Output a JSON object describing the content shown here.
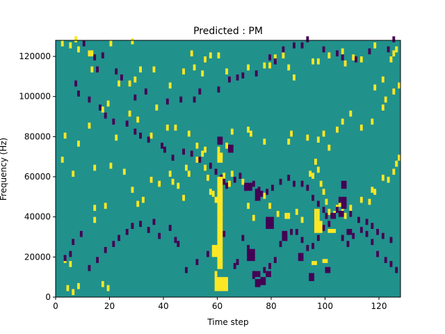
{
  "chart_data": {
    "type": "heatmap",
    "title": "Predicted : PM",
    "xlabel": "Time step",
    "ylabel": "Frequency (Hz)",
    "xlim": [
      0,
      128
    ],
    "ylim": [
      0,
      128000
    ],
    "grid": false,
    "xticks": [
      0,
      20,
      40,
      60,
      80,
      100,
      120
    ],
    "yticks": [
      0,
      20000,
      40000,
      60000,
      80000,
      100000,
      120000
    ],
    "n_time_steps": 128,
    "n_freq_bins": 128,
    "freq_bin_width": 1000,
    "values_range": [
      -1,
      1
    ],
    "colors": {
      "background": "#21918c",
      "positive": "#fde725",
      "negative": "#440154"
    },
    "cells": {
      "positive": [
        [
          2,
          125
        ],
        [
          5,
          124
        ],
        [
          7,
          127
        ],
        [
          8,
          122
        ],
        [
          13,
          120
        ],
        [
          20,
          125
        ],
        [
          28,
          126
        ],
        [
          4,
          3
        ],
        [
          3,
          17
        ],
        [
          5,
          15
        ],
        [
          6,
          1
        ],
        [
          14,
          37
        ],
        [
          17,
          5
        ],
        [
          19,
          3
        ],
        [
          23,
          105
        ],
        [
          27,
          105
        ],
        [
          29,
          107
        ],
        [
          31,
          112
        ],
        [
          36,
          112
        ],
        [
          42,
          104
        ],
        [
          47,
          111
        ],
        [
          50,
          120
        ],
        [
          51,
          113
        ],
        [
          54,
          110
        ],
        [
          55,
          117
        ],
        [
          57,
          119
        ],
        [
          60,
          119
        ],
        [
          63,
          111
        ],
        [
          71,
          113
        ],
        [
          77,
          114
        ],
        [
          79,
          114
        ],
        [
          81,
          118
        ],
        [
          84,
          119
        ],
        [
          86,
          113
        ],
        [
          88,
          108
        ],
        [
          95,
          116
        ],
        [
          97,
          116
        ],
        [
          101,
          119
        ],
        [
          106,
          121
        ],
        [
          107,
          115
        ],
        [
          110,
          118
        ],
        [
          113,
          117
        ],
        [
          118,
          124
        ],
        [
          118,
          103
        ],
        [
          121,
          107
        ],
        [
          124,
          117
        ],
        [
          125,
          120
        ],
        [
          126,
          122
        ],
        [
          8,
          4
        ],
        [
          12,
          120
        ],
        [
          13,
          112
        ],
        [
          12,
          84
        ],
        [
          19,
          95
        ],
        [
          17,
          92
        ],
        [
          22,
          78
        ],
        [
          27,
          90
        ],
        [
          30,
          87
        ],
        [
          35,
          79
        ],
        [
          37,
          93
        ],
        [
          41,
          83
        ],
        [
          44,
          83
        ],
        [
          49,
          80
        ],
        [
          52,
          74
        ],
        [
          54,
          70
        ],
        [
          55,
          72
        ],
        [
          60,
          72
        ],
        [
          61,
          69
        ],
        [
          63,
          74
        ],
        [
          65,
          81
        ],
        [
          72,
          80
        ],
        [
          71,
          82
        ],
        [
          77,
          76
        ],
        [
          86,
          76
        ],
        [
          87,
          80
        ],
        [
          93,
          78
        ],
        [
          97,
          77
        ],
        [
          99,
          80
        ],
        [
          101,
          73
        ],
        [
          104,
          82
        ],
        [
          106,
          86
        ],
        [
          109,
          90
        ],
        [
          113,
          83
        ],
        [
          117,
          86
        ],
        [
          121,
          93
        ],
        [
          122,
          97
        ],
        [
          125,
          101
        ],
        [
          127,
          104
        ],
        [
          2,
          67
        ],
        [
          3,
          79
        ],
        [
          6,
          60
        ],
        [
          8,
          75
        ],
        [
          14,
          43
        ],
        [
          18,
          44
        ],
        [
          14,
          63
        ],
        [
          20,
          64
        ],
        [
          25,
          61
        ],
        [
          28,
          52
        ],
        [
          30,
          45
        ],
        [
          32,
          47
        ],
        [
          35,
          57
        ],
        [
          38,
          55
        ],
        [
          42,
          60
        ],
        [
          43,
          56
        ],
        [
          45,
          54
        ],
        [
          47,
          48
        ],
        [
          48,
          63
        ],
        [
          49,
          60
        ],
        [
          52,
          67
        ],
        [
          55,
          63
        ],
        [
          56,
          58
        ],
        [
          57,
          51
        ],
        [
          58,
          50
        ],
        [
          59,
          47
        ],
        [
          62,
          59
        ],
        [
          64,
          55
        ],
        [
          65,
          60
        ],
        [
          69,
          56
        ],
        [
          71,
          44
        ],
        [
          73,
          38
        ],
        [
          75,
          48
        ],
        [
          77,
          49
        ],
        [
          79,
          44
        ],
        [
          82,
          40
        ],
        [
          85,
          39
        ],
        [
          86,
          39
        ],
        [
          89,
          41
        ],
        [
          91,
          37
        ],
        [
          94,
          60
        ],
        [
          95,
          59
        ],
        [
          96,
          66
        ],
        [
          97,
          62
        ],
        [
          98,
          55
        ],
        [
          99,
          51
        ],
        [
          100,
          46
        ],
        [
          101,
          41
        ],
        [
          103,
          40
        ],
        [
          104,
          43
        ],
        [
          105,
          45
        ],
        [
          106,
          41
        ],
        [
          107,
          39
        ],
        [
          109,
          43
        ],
        [
          113,
          47
        ],
        [
          116,
          46
        ],
        [
          117,
          52
        ],
        [
          118,
          51
        ],
        [
          121,
          58
        ],
        [
          123,
          57
        ],
        [
          125,
          61
        ],
        [
          126,
          65
        ],
        [
          127,
          68
        ]
      ],
      "negative": [
        [
          7,
          105
        ],
        [
          8,
          100
        ],
        [
          10,
          125
        ],
        [
          14,
          118
        ],
        [
          15,
          112
        ],
        [
          17,
          119
        ],
        [
          22,
          111
        ],
        [
          24,
          108
        ],
        [
          29,
          98
        ],
        [
          33,
          101
        ],
        [
          41,
          96
        ],
        [
          46,
          97
        ],
        [
          51,
          97
        ],
        [
          53,
          101
        ],
        [
          60,
          102
        ],
        [
          64,
          107
        ],
        [
          67,
          108
        ],
        [
          69,
          109
        ],
        [
          74,
          110
        ],
        [
          79,
          118
        ],
        [
          81,
          116
        ],
        [
          84,
          122
        ],
        [
          88,
          124
        ],
        [
          91,
          124
        ],
        [
          93,
          127
        ],
        [
          99,
          122
        ],
        [
          104,
          120
        ],
        [
          106,
          118
        ],
        [
          111,
          117
        ],
        [
          116,
          121
        ],
        [
          123,
          122
        ],
        [
          125,
          127
        ],
        [
          12,
          97
        ],
        [
          16,
          93
        ],
        [
          18,
          89
        ],
        [
          21,
          86
        ],
        [
          26,
          85
        ],
        [
          29,
          81
        ],
        [
          31,
          79
        ],
        [
          34,
          77
        ],
        [
          39,
          74
        ],
        [
          40,
          72
        ],
        [
          43,
          68
        ],
        [
          47,
          71
        ],
        [
          50,
          70
        ],
        [
          53,
          67
        ],
        [
          57,
          64
        ],
        [
          59,
          61
        ],
        [
          61,
          58
        ],
        [
          62,
          56
        ],
        [
          63,
          54
        ],
        [
          66,
          57
        ],
        [
          68,
          59
        ],
        [
          70,
          53
        ],
        [
          73,
          55
        ],
        [
          75,
          52
        ],
        [
          76,
          50
        ],
        [
          78,
          51
        ],
        [
          80,
          53
        ],
        [
          83,
          56
        ],
        [
          86,
          58
        ],
        [
          88,
          55
        ],
        [
          91,
          55
        ],
        [
          93,
          53
        ],
        [
          95,
          48
        ],
        [
          97,
          45
        ],
        [
          99,
          42
        ],
        [
          100,
          39
        ],
        [
          102,
          39
        ],
        [
          104,
          42
        ],
        [
          105,
          47
        ],
        [
          107,
          45
        ],
        [
          109,
          40
        ],
        [
          112,
          37
        ],
        [
          115,
          36
        ],
        [
          117,
          34
        ],
        [
          119,
          31
        ],
        [
          121,
          29
        ],
        [
          124,
          27
        ],
        [
          3,
          18
        ],
        [
          5,
          20
        ],
        [
          6,
          26
        ],
        [
          9,
          30
        ],
        [
          12,
          13
        ],
        [
          15,
          17
        ],
        [
          18,
          22
        ],
        [
          21,
          25
        ],
        [
          23,
          28
        ],
        [
          26,
          31
        ],
        [
          28,
          34
        ],
        [
          31,
          35
        ],
        [
          34,
          32
        ],
        [
          36,
          36
        ],
        [
          38,
          29
        ],
        [
          42,
          33
        ],
        [
          44,
          27
        ],
        [
          45,
          25
        ],
        [
          48,
          12
        ],
        [
          52,
          16
        ],
        [
          56,
          20
        ],
        [
          58,
          22
        ],
        [
          62,
          30
        ],
        [
          66,
          14
        ],
        [
          67,
          16
        ],
        [
          69,
          28
        ],
        [
          71,
          23
        ],
        [
          73,
          9
        ],
        [
          75,
          10
        ],
        [
          77,
          12
        ],
        [
          79,
          14
        ],
        [
          81,
          17
        ],
        [
          83,
          25
        ],
        [
          85,
          28
        ],
        [
          87,
          31
        ],
        [
          89,
          31
        ],
        [
          91,
          27
        ],
        [
          93,
          23
        ],
        [
          95,
          24
        ],
        [
          97,
          28
        ],
        [
          99,
          33
        ],
        [
          101,
          35
        ],
        [
          103,
          39
        ],
        [
          106,
          28
        ],
        [
          108,
          25
        ],
        [
          110,
          29
        ],
        [
          113,
          32
        ],
        [
          115,
          30
        ],
        [
          117,
          26
        ],
        [
          119,
          20
        ],
        [
          122,
          17
        ],
        [
          124,
          15
        ],
        [
          126,
          12
        ]
      ],
      "positive_blocks": [
        [
          59,
          60,
          10,
          13
        ],
        [
          59,
          64,
          3,
          10
        ],
        [
          60,
          62,
          14,
          60
        ],
        [
          58,
          60,
          20,
          26
        ],
        [
          61,
          62,
          40,
          42
        ],
        [
          60,
          62,
          67,
          72
        ],
        [
          96,
          99,
          32,
          38
        ],
        [
          96,
          97,
          36,
          44
        ],
        [
          97,
          98,
          38,
          44
        ],
        [
          101,
          104,
          32,
          34
        ],
        [
          95,
          97,
          16,
          18
        ],
        [
          99,
          101,
          17,
          19
        ]
      ],
      "negative_blocks": [
        [
          60,
          62,
          76,
          80
        ],
        [
          64,
          66,
          72,
          76
        ],
        [
          70,
          73,
          53,
          57
        ],
        [
          74,
          76,
          48,
          54
        ],
        [
          78,
          81,
          34,
          40
        ],
        [
          84,
          86,
          28,
          33
        ],
        [
          90,
          92,
          18,
          22
        ],
        [
          94,
          96,
          8,
          12
        ],
        [
          100,
          102,
          12,
          15
        ],
        [
          106,
          108,
          54,
          58
        ],
        [
          106,
          108,
          44,
          50
        ],
        [
          105,
          107,
          40,
          43
        ],
        [
          108,
          110,
          31,
          34
        ],
        [
          71,
          74,
          18,
          24
        ],
        [
          73,
          75,
          10,
          13
        ],
        [
          74,
          76,
          5,
          9
        ],
        [
          76,
          78,
          6,
          10
        ],
        [
          78,
          80,
          10,
          13
        ]
      ]
    }
  }
}
